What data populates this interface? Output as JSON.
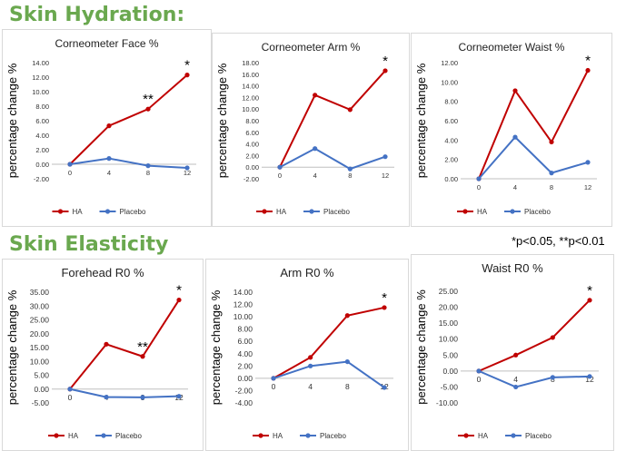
{
  "sections": {
    "hydration_title": "Skin Hydration:",
    "elasticity_title": "Skin Elasticity",
    "significance_note": "*p<0.05, **p<0.01"
  },
  "colors": {
    "ha": "#c00000",
    "placebo": "#4472c4"
  },
  "chart_data": [
    {
      "type": "line",
      "title": "Corneometer Face %",
      "ylabel": "percentage change %",
      "categories": [
        "0",
        "4",
        "8",
        "12"
      ],
      "yticks": [
        "-2.00",
        "0.00",
        "2.00",
        "4.00",
        "6.00",
        "8.00",
        "10.00",
        "12.00",
        "14.00"
      ],
      "ylim": [
        -2,
        14
      ],
      "series": [
        {
          "name": "HA",
          "values": [
            0,
            5.3,
            7.6,
            12.3
          ]
        },
        {
          "name": "Placebo",
          "values": [
            0,
            0.8,
            -0.2,
            -0.5
          ]
        }
      ],
      "annotations": [
        {
          "text": "**",
          "index": 2
        },
        {
          "text": "*",
          "index": 3
        }
      ],
      "legend": "bottom"
    },
    {
      "type": "line",
      "title": "Corneometer Arm %",
      "ylabel": "percentage change %",
      "categories": [
        "0",
        "4",
        "8",
        "12"
      ],
      "yticks": [
        "-2.00",
        "0.00",
        "2.00",
        "4.00",
        "6.00",
        "8.00",
        "10.00",
        "12.00",
        "14.00",
        "16.00",
        "18.00"
      ],
      "ylim": [
        -2,
        18
      ],
      "series": [
        {
          "name": "HA",
          "values": [
            0,
            12.4,
            9.9,
            16.6
          ]
        },
        {
          "name": "Placebo",
          "values": [
            0,
            3.2,
            -0.3,
            1.8
          ]
        }
      ],
      "annotations": [
        {
          "text": "*",
          "index": 3
        }
      ],
      "legend": "bottom"
    },
    {
      "type": "line",
      "title": "Corneometer Waist %",
      "ylabel": "percentage change %",
      "categories": [
        "0",
        "4",
        "8",
        "12"
      ],
      "yticks": [
        "0.00",
        "2.00",
        "4.00",
        "6.00",
        "8.00",
        "10.00",
        "12.00"
      ],
      "ylim": [
        0,
        12
      ],
      "series": [
        {
          "name": "HA",
          "values": [
            0,
            9.1,
            3.8,
            11.2
          ]
        },
        {
          "name": "Placebo",
          "values": [
            0,
            4.3,
            0.6,
            1.7
          ]
        }
      ],
      "annotations": [
        {
          "text": "*",
          "index": 3
        }
      ],
      "legend": "bottom"
    },
    {
      "type": "line",
      "title": "Forehead R0 %",
      "ylabel": "percentage change %",
      "categories": [
        "0",
        "4",
        "8",
        "12"
      ],
      "yticks": [
        "-5.00",
        "0.00",
        "5.00",
        "10.00",
        "15.00",
        "20.00",
        "25.00",
        "30.00",
        "35.00"
      ],
      "ylim": [
        -5,
        35
      ],
      "series": [
        {
          "name": "HA",
          "values": [
            0,
            16.2,
            11.8,
            32.2
          ]
        },
        {
          "name": "Placebo",
          "values": [
            0,
            -2.9,
            -3.0,
            -2.6
          ]
        }
      ],
      "annotations": [
        {
          "text": "**",
          "index": 2
        },
        {
          "text": "*",
          "index": 3
        }
      ],
      "legend": "bottom"
    },
    {
      "type": "line",
      "title": "Arm R0 %",
      "ylabel": "percentage change %",
      "categories": [
        "0",
        "4",
        "8",
        "12"
      ],
      "yticks": [
        "-4.00",
        "-2.00",
        "0.00",
        "2.00",
        "4.00",
        "6.00",
        "8.00",
        "10.00",
        "12.00",
        "14.00"
      ],
      "ylim": [
        -4,
        14
      ],
      "series": [
        {
          "name": "HA",
          "values": [
            0,
            3.4,
            10.2,
            11.5
          ]
        },
        {
          "name": "Placebo",
          "values": [
            0,
            2.0,
            2.7,
            -1.5
          ]
        }
      ],
      "annotations": [
        {
          "text": "*",
          "index": 3
        }
      ],
      "legend": "bottom"
    },
    {
      "type": "line",
      "title": "Waist R0 %",
      "ylabel": "percentage change %",
      "categories": [
        "0",
        "4",
        "8",
        "12"
      ],
      "yticks": [
        "-10.00",
        "-5.00",
        "0.00",
        "5.00",
        "10.00",
        "15.00",
        "20.00",
        "25.00"
      ],
      "ylim": [
        -10,
        25
      ],
      "series": [
        {
          "name": "HA",
          "values": [
            0,
            5.0,
            10.5,
            22.2
          ]
        },
        {
          "name": "Placebo",
          "values": [
            0,
            -5.0,
            -2.0,
            -1.7
          ]
        }
      ],
      "annotations": [
        {
          "text": "*",
          "index": 3
        }
      ],
      "legend": "bottom"
    }
  ]
}
